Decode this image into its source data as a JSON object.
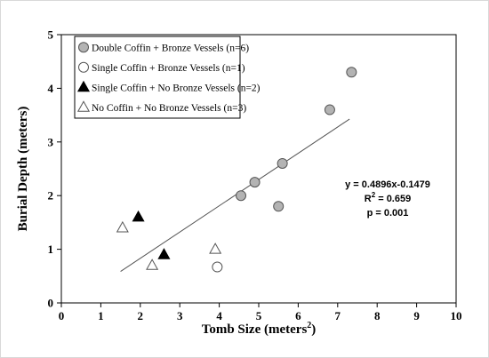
{
  "chart_data": {
    "type": "scatter",
    "xlabel": "Tomb Size (meters",
    "xlabel_sup": "2",
    "xlabel_close": ")",
    "ylabel": "Burial Depth (meters)",
    "xlim": [
      0,
      10
    ],
    "ylim": [
      0,
      5
    ],
    "xticks": [
      "0",
      "1",
      "2",
      "3",
      "4",
      "5",
      "6",
      "7",
      "8",
      "9",
      "10"
    ],
    "yticks": [
      "0",
      "1",
      "2",
      "3",
      "4",
      "5"
    ],
    "grid": false,
    "legend_position": "top-left",
    "series": [
      {
        "name": "Double Coffin + Bronze Vessels (n=6)",
        "marker": "circle",
        "fill": "#b3b3b3",
        "stroke": "#555555",
        "points": [
          [
            4.55,
            2.0
          ],
          [
            4.9,
            2.25
          ],
          [
            5.5,
            1.8
          ],
          [
            5.6,
            2.6
          ],
          [
            6.8,
            3.6
          ],
          [
            7.35,
            4.3
          ]
        ]
      },
      {
        "name": "Single Coffin + Bronze Vessels (n=1)",
        "marker": "circle",
        "fill": "#ffffff",
        "stroke": "#555555",
        "points": [
          [
            3.95,
            0.67
          ]
        ]
      },
      {
        "name": "Single Coffin + No Bronze Vessels (n=2)",
        "marker": "triangle",
        "fill": "#000000",
        "stroke": "#000000",
        "points": [
          [
            1.95,
            1.6
          ],
          [
            2.6,
            0.9
          ]
        ]
      },
      {
        "name": "No Coffin + No Bronze Vessels (n=3)",
        "marker": "triangle",
        "fill": "#ffffff",
        "stroke": "#555555",
        "points": [
          [
            1.55,
            1.4
          ],
          [
            2.3,
            0.7
          ],
          [
            3.9,
            1.0
          ]
        ]
      }
    ],
    "trendline": {
      "slope": 0.4896,
      "intercept": -0.1479,
      "x_range": [
        1.5,
        7.3
      ],
      "color": "#555555"
    },
    "annotations": {
      "equation": "y = 0.4896x-0.1479",
      "r2_prefix": "R",
      "r2_sup": "2",
      "r2_value": " = 0.659",
      "p_value": "p = 0.001"
    }
  }
}
